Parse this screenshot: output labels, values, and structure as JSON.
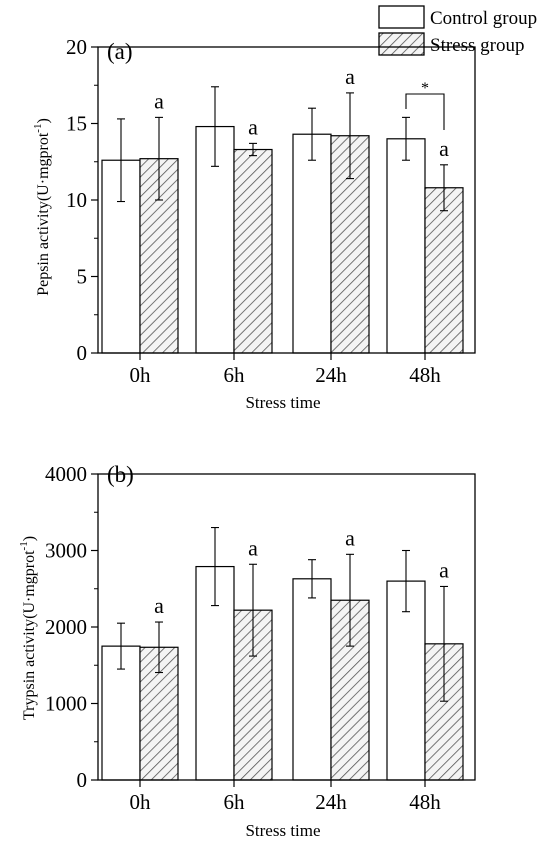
{
  "legend": {
    "items": [
      {
        "label": "Control group",
        "style": "open"
      },
      {
        "label": "Stress group",
        "style": "hatched"
      }
    ]
  },
  "chart_data": [
    {
      "type": "bar",
      "panel_label": "(a)",
      "title": "",
      "xlabel": "Stress time",
      "ylabel_main": "Pepsin activity(U·mgprot",
      "ylabel_sup": "-1",
      "ylabel_end": ")",
      "categories": [
        "0h",
        "6h",
        "24h",
        "48h"
      ],
      "ylim": [
        0,
        20
      ],
      "yticks": [
        0,
        5,
        10,
        15,
        20
      ],
      "series": [
        {
          "name": "Control group",
          "values": [
            12.6,
            14.8,
            14.3,
            14.0
          ],
          "errors": [
            2.7,
            2.6,
            1.7,
            1.4
          ]
        },
        {
          "name": "Stress group",
          "values": [
            12.7,
            13.3,
            14.2,
            10.8
          ],
          "errors": [
            2.7,
            0.4,
            2.8,
            1.5
          ]
        }
      ],
      "significance_labels": [
        "a",
        "a",
        "a",
        "a"
      ],
      "comparison_marker": {
        "category": "48h",
        "label": "*"
      }
    },
    {
      "type": "bar",
      "panel_label": "(b)",
      "title": "",
      "xlabel": "Stress time",
      "ylabel_main": "Trypsin activity(U·mgprot",
      "ylabel_sup": "-1",
      "ylabel_end": ")",
      "categories": [
        "0h",
        "6h",
        "24h",
        "48h"
      ],
      "ylim": [
        0,
        4000
      ],
      "yticks": [
        0,
        1000,
        2000,
        3000,
        4000
      ],
      "series": [
        {
          "name": "Control group",
          "values": [
            1750,
            2790,
            2630,
            2600
          ],
          "errors": [
            300,
            510,
            250,
            400
          ]
        },
        {
          "name": "Stress group",
          "values": [
            1735,
            2220,
            2350,
            1780
          ],
          "errors": [
            330,
            600,
            600,
            750
          ]
        }
      ],
      "significance_labels": [
        "a",
        "a",
        "a",
        "a"
      ]
    }
  ],
  "colors": {
    "bar_stroke": "#000000",
    "hatch": "#555555",
    "hatch_fill": "#f4f4f4"
  }
}
